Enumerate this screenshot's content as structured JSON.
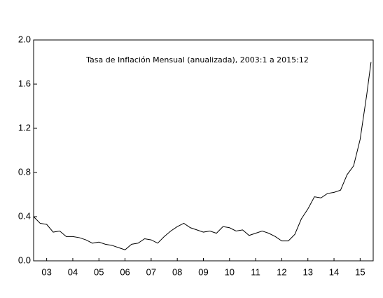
{
  "chart_data": {
    "type": "line",
    "annotation": "Tasa de Inflación Mensual (anualizada), 2003:1 a 2015:12",
    "x": [
      2003.0,
      2003.25,
      2003.5,
      2003.75,
      2004.0,
      2004.25,
      2004.5,
      2004.75,
      2005.0,
      2005.25,
      2005.5,
      2005.75,
      2006.0,
      2006.25,
      2006.5,
      2006.75,
      2007.0,
      2007.25,
      2007.5,
      2007.75,
      2008.0,
      2008.25,
      2008.5,
      2008.75,
      2009.0,
      2009.25,
      2009.5,
      2009.75,
      2010.0,
      2010.25,
      2010.5,
      2010.75,
      2011.0,
      2011.25,
      2011.5,
      2011.75,
      2012.0,
      2012.25,
      2012.5,
      2012.75,
      2013.0,
      2013.25,
      2013.5,
      2013.75,
      2014.0,
      2014.25,
      2014.5,
      2014.75,
      2015.0,
      2015.25,
      2015.5,
      2015.75,
      2015.917
    ],
    "values": [
      0.4,
      0.34,
      0.33,
      0.26,
      0.27,
      0.22,
      0.22,
      0.21,
      0.19,
      0.16,
      0.17,
      0.15,
      0.14,
      0.12,
      0.1,
      0.15,
      0.16,
      0.2,
      0.19,
      0.16,
      0.22,
      0.27,
      0.31,
      0.34,
      0.3,
      0.28,
      0.26,
      0.27,
      0.25,
      0.31,
      0.3,
      0.27,
      0.28,
      0.23,
      0.25,
      0.27,
      0.25,
      0.22,
      0.18,
      0.18,
      0.24,
      0.38,
      0.47,
      0.58,
      0.57,
      0.61,
      0.62,
      0.64,
      0.78,
      0.86,
      1.1,
      1.5,
      1.8
    ],
    "color": "#000000",
    "xlim": [
      2003,
      2016
    ],
    "xticks": [
      {
        "value": 2003.5,
        "label": "03"
      },
      {
        "value": 2004.5,
        "label": "04"
      },
      {
        "value": 2005.5,
        "label": "05"
      },
      {
        "value": 2006.5,
        "label": "06"
      },
      {
        "value": 2007.5,
        "label": "07"
      },
      {
        "value": 2008.5,
        "label": "08"
      },
      {
        "value": 2009.5,
        "label": "09"
      },
      {
        "value": 2010.5,
        "label": "10"
      },
      {
        "value": 2011.5,
        "label": "11"
      },
      {
        "value": 2012.5,
        "label": "12"
      },
      {
        "value": 2013.5,
        "label": "13"
      },
      {
        "value": 2014.5,
        "label": "14"
      },
      {
        "value": 2015.5,
        "label": "15"
      }
    ],
    "ylim": [
      0,
      2
    ],
    "yticks": [
      {
        "value": 0,
        "label": "0.0"
      },
      0.4,
      0.8,
      1.2,
      1.6,
      {
        "value": 2,
        "label": "2.0"
      }
    ]
  }
}
